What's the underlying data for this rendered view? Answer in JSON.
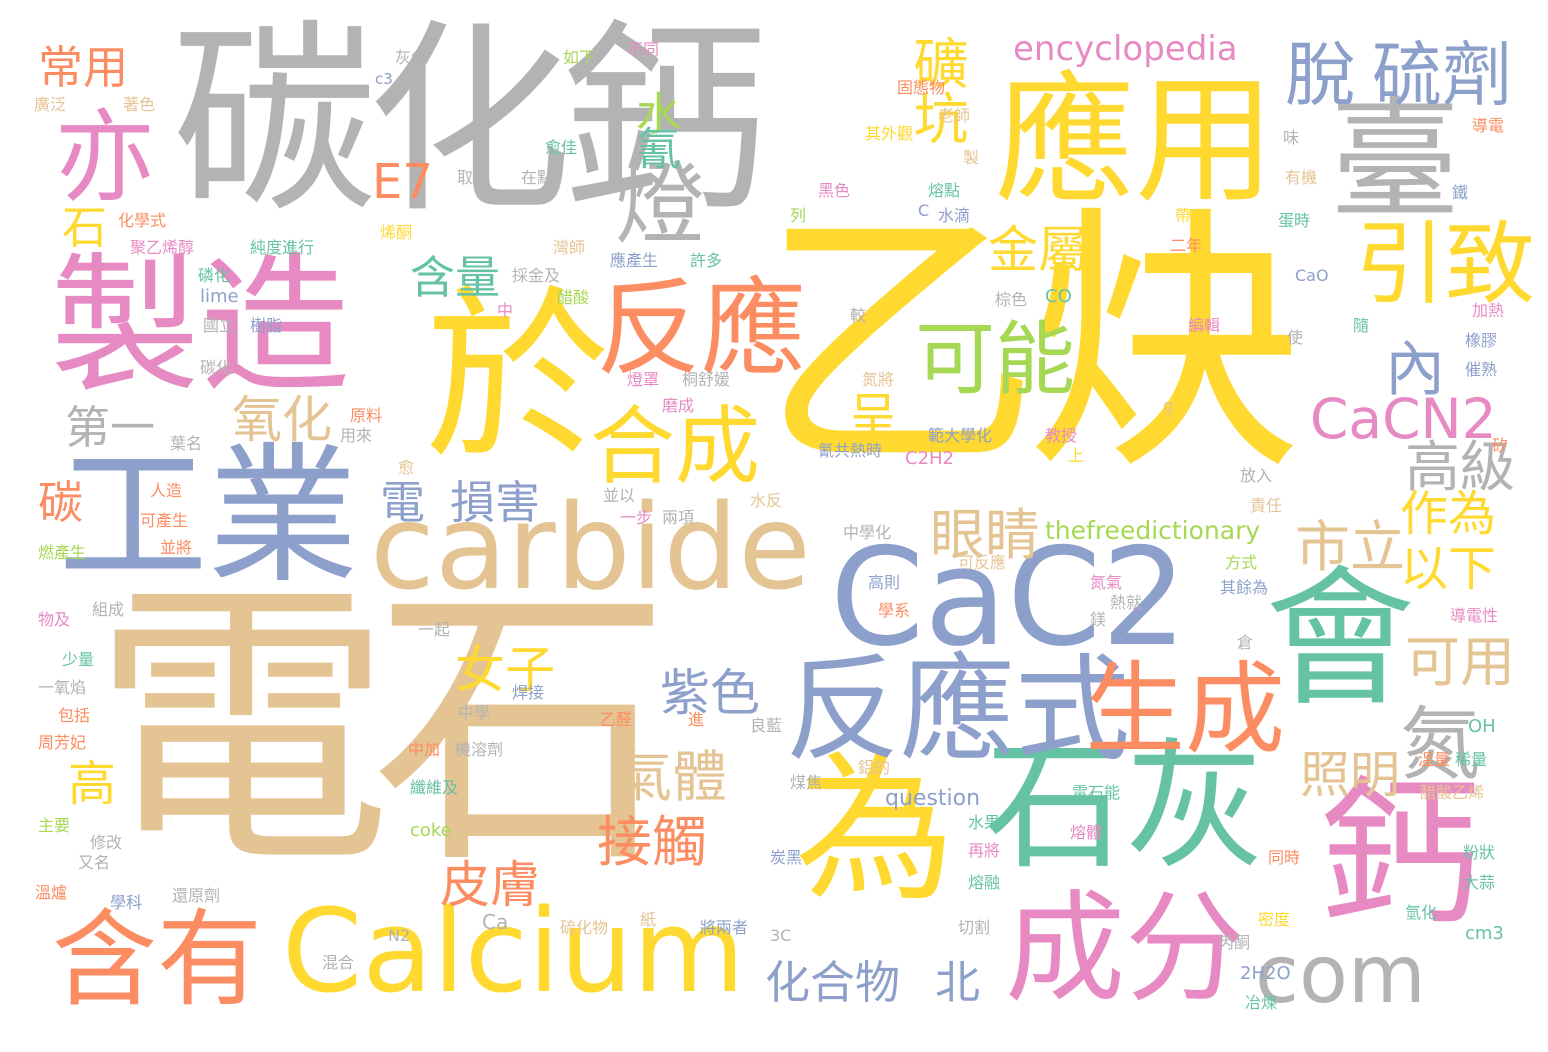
{
  "palette": {
    "yellow": "#ffd92f",
    "gray": "#b3b3b3",
    "tan": "#e5c494",
    "pink": "#e78ac3",
    "blue": "#8da0cb",
    "green": "#66c2a5",
    "orange": "#fc8d62",
    "lime": "#a6d854"
  },
  "words": [
    {
      "text": "電石",
      "color": "tan"
    },
    {
      "text": "乙炔",
      "color": "yellow"
    },
    {
      "text": "碳化鈣",
      "color": "gray"
    },
    {
      "text": "應用",
      "color": "yellow"
    },
    {
      "text": "於",
      "color": "yellow"
    },
    {
      "text": "製造",
      "color": "pink"
    },
    {
      "text": "工業",
      "color": "blue"
    },
    {
      "text": "carbide",
      "color": "tan"
    },
    {
      "text": "CaC2",
      "color": "blue"
    },
    {
      "text": "石灰",
      "color": "green"
    },
    {
      "text": "為",
      "color": "yellow"
    },
    {
      "text": "會",
      "color": "green"
    },
    {
      "text": "鈣",
      "color": "pink"
    },
    {
      "text": "成分",
      "color": "pink"
    },
    {
      "text": "Calcium",
      "color": "yellow"
    },
    {
      "text": "反應式",
      "color": "blue"
    },
    {
      "text": "臺",
      "color": "gray"
    },
    {
      "text": "反應",
      "color": "orange"
    },
    {
      "text": "含有",
      "color": "orange"
    },
    {
      "text": "生成",
      "color": "orange"
    },
    {
      "text": "燈",
      "color": "gray"
    },
    {
      "text": "亦",
      "color": "pink"
    },
    {
      "text": "合成",
      "color": "yellow"
    },
    {
      "text": "引致",
      "color": "yellow"
    },
    {
      "text": "脫",
      "color": "blue"
    },
    {
      "text": "硫劑",
      "color": "blue"
    },
    {
      "text": "com",
      "color": "gray"
    },
    {
      "text": "可能",
      "color": "lime"
    },
    {
      "text": "氮",
      "color": "gray"
    },
    {
      "text": "CaCN2",
      "color": "pink"
    },
    {
      "text": "礦坑",
      "color": "yellow"
    },
    {
      "text": "encyclopedia",
      "color": "pink"
    },
    {
      "text": "金屬",
      "color": "yellow"
    },
    {
      "text": "內",
      "color": "blue"
    },
    {
      "text": "高級",
      "color": "gray"
    },
    {
      "text": "常用",
      "color": "orange"
    },
    {
      "text": "E7",
      "color": "orange"
    },
    {
      "text": "水",
      "color": "lime"
    },
    {
      "text": "氰",
      "color": "green"
    },
    {
      "text": "含量",
      "color": "green"
    },
    {
      "text": "石",
      "color": "yellow"
    },
    {
      "text": "氧化",
      "color": "tan"
    },
    {
      "text": "第一",
      "color": "gray"
    },
    {
      "text": "呈",
      "color": "yellow"
    },
    {
      "text": "電",
      "color": "blue"
    },
    {
      "text": "損害",
      "color": "blue"
    },
    {
      "text": "碳",
      "color": "orange"
    },
    {
      "text": "眼睛",
      "color": "tan"
    },
    {
      "text": "市立",
      "color": "tan"
    },
    {
      "text": "作為",
      "color": "yellow"
    },
    {
      "text": "以下",
      "color": "yellow"
    },
    {
      "text": "女子",
      "color": "yellow"
    },
    {
      "text": "紫色",
      "color": "blue"
    },
    {
      "text": "可用",
      "color": "tan"
    },
    {
      "text": "照明",
      "color": "tan"
    },
    {
      "text": "氣體",
      "color": "tan"
    },
    {
      "text": "接觸",
      "color": "orange"
    },
    {
      "text": "高",
      "color": "yellow"
    },
    {
      "text": "皮膚",
      "color": "orange"
    },
    {
      "text": "化合物",
      "color": "blue"
    },
    {
      "text": "北",
      "color": "blue"
    },
    {
      "text": "thefreedictionary",
      "color": "lime"
    },
    {
      "text": "question",
      "color": "blue"
    },
    {
      "text": "coke",
      "color": "lime"
    },
    {
      "text": "lime",
      "color": "blue"
    },
    {
      "text": "CaO",
      "color": "blue"
    },
    {
      "text": "CO",
      "color": "green"
    },
    {
      "text": "C2H2",
      "color": "pink"
    },
    {
      "text": "OH",
      "color": "green"
    },
    {
      "text": "2H2O",
      "color": "blue"
    },
    {
      "text": "cm3",
      "color": "green"
    },
    {
      "text": "Ca",
      "color": "gray"
    },
    {
      "text": "N2",
      "color": "gray"
    },
    {
      "text": "3C",
      "color": "gray"
    },
    {
      "text": "c3",
      "color": "blue"
    },
    {
      "text": "C",
      "color": "blue"
    },
    {
      "text": "g",
      "color": "tan"
    },
    {
      "text": "灰色",
      "color": "gray"
    },
    {
      "text": "如下",
      "color": "lime"
    },
    {
      "text": "不同",
      "color": "pink"
    },
    {
      "text": "固態物",
      "color": "orange"
    },
    {
      "text": "老師",
      "color": "tan"
    },
    {
      "text": "廣泛",
      "color": "tan"
    },
    {
      "text": "著色",
      "color": "tan"
    },
    {
      "text": "含",
      "color": "gray"
    },
    {
      "text": "愈佳",
      "color": "green"
    },
    {
      "text": "其外觀",
      "color": "yellow"
    },
    {
      "text": "味",
      "color": "gray"
    },
    {
      "text": "導電",
      "color": "orange"
    },
    {
      "text": "取",
      "color": "gray"
    },
    {
      "text": "在點",
      "color": "gray"
    },
    {
      "text": "製",
      "color": "tan"
    },
    {
      "text": "熔點",
      "color": "green"
    },
    {
      "text": "黑色",
      "color": "pink"
    },
    {
      "text": "有機",
      "color": "tan"
    },
    {
      "text": "鐵",
      "color": "blue"
    },
    {
      "text": "化學式",
      "color": "orange"
    },
    {
      "text": "聚乙烯醇",
      "color": "pink"
    },
    {
      "text": "純度進行",
      "color": "green"
    },
    {
      "text": "列",
      "color": "lime"
    },
    {
      "text": "水滴",
      "color": "blue"
    },
    {
      "text": "帶",
      "color": "yellow"
    },
    {
      "text": "蛋時",
      "color": "green"
    },
    {
      "text": "烯酮",
      "color": "yellow"
    },
    {
      "text": "灣師",
      "color": "tan"
    },
    {
      "text": "二年",
      "color": "orange"
    },
    {
      "text": "磷化",
      "color": "green"
    },
    {
      "text": "採金及",
      "color": "gray"
    },
    {
      "text": "應產生",
      "color": "blue"
    },
    {
      "text": "許多",
      "color": "green"
    },
    {
      "text": "醋酸",
      "color": "lime"
    },
    {
      "text": "棕色",
      "color": "gray"
    },
    {
      "text": "加熱",
      "color": "pink"
    },
    {
      "text": "國立",
      "color": "gray"
    },
    {
      "text": "樹脂",
      "color": "blue"
    },
    {
      "text": "中",
      "color": "pink"
    },
    {
      "text": "較",
      "color": "gray"
    },
    {
      "text": "編輯",
      "color": "pink"
    },
    {
      "text": "使",
      "color": "gray"
    },
    {
      "text": "隨",
      "color": "green"
    },
    {
      "text": "橡膠",
      "color": "blue"
    },
    {
      "text": "碳化",
      "color": "gray"
    },
    {
      "text": "燈罩",
      "color": "pink"
    },
    {
      "text": "桐舒媛",
      "color": "gray"
    },
    {
      "text": "氮將",
      "color": "tan"
    },
    {
      "text": "催熟",
      "color": "blue"
    },
    {
      "text": "原料",
      "color": "orange"
    },
    {
      "text": "用來",
      "color": "gray"
    },
    {
      "text": "磨成",
      "color": "pink"
    },
    {
      "text": "範大學化",
      "color": "blue"
    },
    {
      "text": "教授",
      "color": "pink"
    },
    {
      "text": "矽",
      "color": "orange"
    },
    {
      "text": "葉名",
      "color": "gray"
    },
    {
      "text": "氰共熱時",
      "color": "blue"
    },
    {
      "text": "上",
      "color": "yellow"
    },
    {
      "text": "人造",
      "color": "orange"
    },
    {
      "text": "愈",
      "color": "tan"
    },
    {
      "text": "放入",
      "color": "gray"
    },
    {
      "text": "並以",
      "color": "gray"
    },
    {
      "text": "一步",
      "color": "pink"
    },
    {
      "text": "兩項",
      "color": "gray"
    },
    {
      "text": "水反",
      "color": "tan"
    },
    {
      "text": "責任",
      "color": "tan"
    },
    {
      "text": "可產生",
      "color": "orange"
    },
    {
      "text": "並將",
      "color": "orange"
    },
    {
      "text": "燃產生",
      "color": "lime"
    },
    {
      "text": "中學化",
      "color": "gray"
    },
    {
      "text": "可反應",
      "color": "tan"
    },
    {
      "text": "方式",
      "color": "lime"
    },
    {
      "text": "高則",
      "color": "blue"
    },
    {
      "text": "氮氣",
      "color": "pink"
    },
    {
      "text": "熱就",
      "color": "gray"
    },
    {
      "text": "其餘為",
      "color": "blue"
    },
    {
      "text": "物及",
      "color": "pink"
    },
    {
      "text": "組成",
      "color": "gray"
    },
    {
      "text": "學系",
      "color": "orange"
    },
    {
      "text": "鎂",
      "color": "gray"
    },
    {
      "text": "導電性",
      "color": "pink"
    },
    {
      "text": "一起",
      "color": "gray"
    },
    {
      "text": "倉",
      "color": "gray"
    },
    {
      "text": "少量",
      "color": "green"
    },
    {
      "text": "一氧焰",
      "color": "gray"
    },
    {
      "text": "中學",
      "color": "gray"
    },
    {
      "text": "焊接",
      "color": "blue"
    },
    {
      "text": "包括",
      "color": "orange"
    },
    {
      "text": "乙醛",
      "color": "orange"
    },
    {
      "text": "進",
      "color": "orange"
    },
    {
      "text": "良藍",
      "color": "gray"
    },
    {
      "text": "周芳妃",
      "color": "orange"
    },
    {
      "text": "中加",
      "color": "orange"
    },
    {
      "text": "機溶劑",
      "color": "gray"
    },
    {
      "text": "鋁的",
      "color": "tan"
    },
    {
      "text": "電石能",
      "color": "green"
    },
    {
      "text": "醋酸乙烯",
      "color": "tan"
    },
    {
      "text": "稀量",
      "color": "green"
    },
    {
      "text": "溫量",
      "color": "orange"
    },
    {
      "text": "煤焦",
      "color": "gray"
    },
    {
      "text": "纖維及",
      "color": "green"
    },
    {
      "text": "主要",
      "color": "lime"
    },
    {
      "text": "修改",
      "color": "gray"
    },
    {
      "text": "又名",
      "color": "gray"
    },
    {
      "text": "炭黑",
      "color": "blue"
    },
    {
      "text": "水果",
      "color": "green"
    },
    {
      "text": "再將",
      "color": "pink"
    },
    {
      "text": "熔體",
      "color": "pink"
    },
    {
      "text": "同時",
      "color": "orange"
    },
    {
      "text": "粉狀",
      "color": "green"
    },
    {
      "text": "大蒜",
      "color": "green"
    },
    {
      "text": "溫爐",
      "color": "orange"
    },
    {
      "text": "學科",
      "color": "blue"
    },
    {
      "text": "還原劑",
      "color": "gray"
    },
    {
      "text": "熔融",
      "color": "green"
    },
    {
      "text": "硫化物",
      "color": "tan"
    },
    {
      "text": "紙",
      "color": "tan"
    },
    {
      "text": "將兩者",
      "color": "blue"
    },
    {
      "text": "切割",
      "color": "gray"
    },
    {
      "text": "密度",
      "color": "yellow"
    },
    {
      "text": "氫化",
      "color": "green"
    },
    {
      "text": "混合",
      "color": "gray"
    },
    {
      "text": "丙酮",
      "color": "gray"
    },
    {
      "text": "冶煉",
      "color": "green"
    }
  ]
}
